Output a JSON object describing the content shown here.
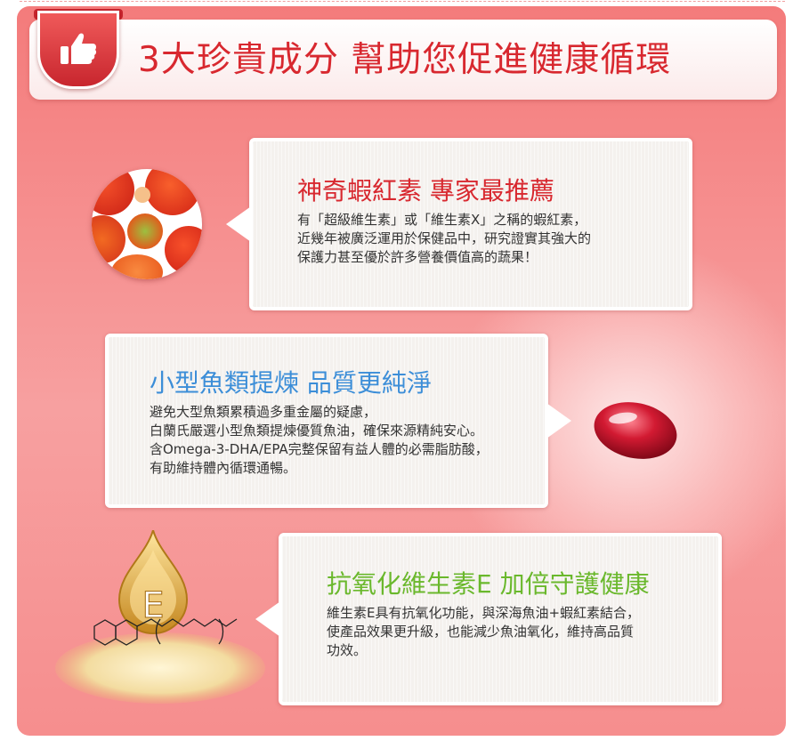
{
  "header": {
    "title": "3大珍貴成分 幫助您促進健康循環",
    "icon": "thumbs-up-icon"
  },
  "cards": [
    {
      "title": "神奇蝦紅素 專家最推薦",
      "body": "有「超級維生素」或「維生素X」之稱的蝦紅素，\n近幾年被廣泛運用於保健品中，研究證實其強大的\n保護力甚至優於許多營養價值高的蔬果！",
      "title_color": "#d8282f",
      "image": "microalgae-cells-image"
    },
    {
      "title": "小型魚類提煉 品質更純淨",
      "body": "避免大型魚類累積過多重金屬的疑慮，\n白蘭氏嚴選小型魚類提煉優質魚油，確保來源精純安心。\n含Omega-3-DHA/EPA完整保留有益人體的必需脂肪酸，\n有助維持體內循環通暢。",
      "title_color": "#3c8ed8",
      "image": "fish-oil-capsule-image"
    },
    {
      "title": "抗氧化維生素E 加倍守護健康",
      "body": "維生素E具有抗氧化功能，與深海魚油+蝦紅素結合，\n使產品效果更升級，也能減少魚油氧化，維持高品質\n功效。",
      "title_color": "#6ab82c",
      "image": "vitamin-e-droplet-image",
      "image_label": "E"
    }
  ],
  "colors": {
    "panel": "#f47b7b",
    "accent_red": "#d8282f"
  }
}
